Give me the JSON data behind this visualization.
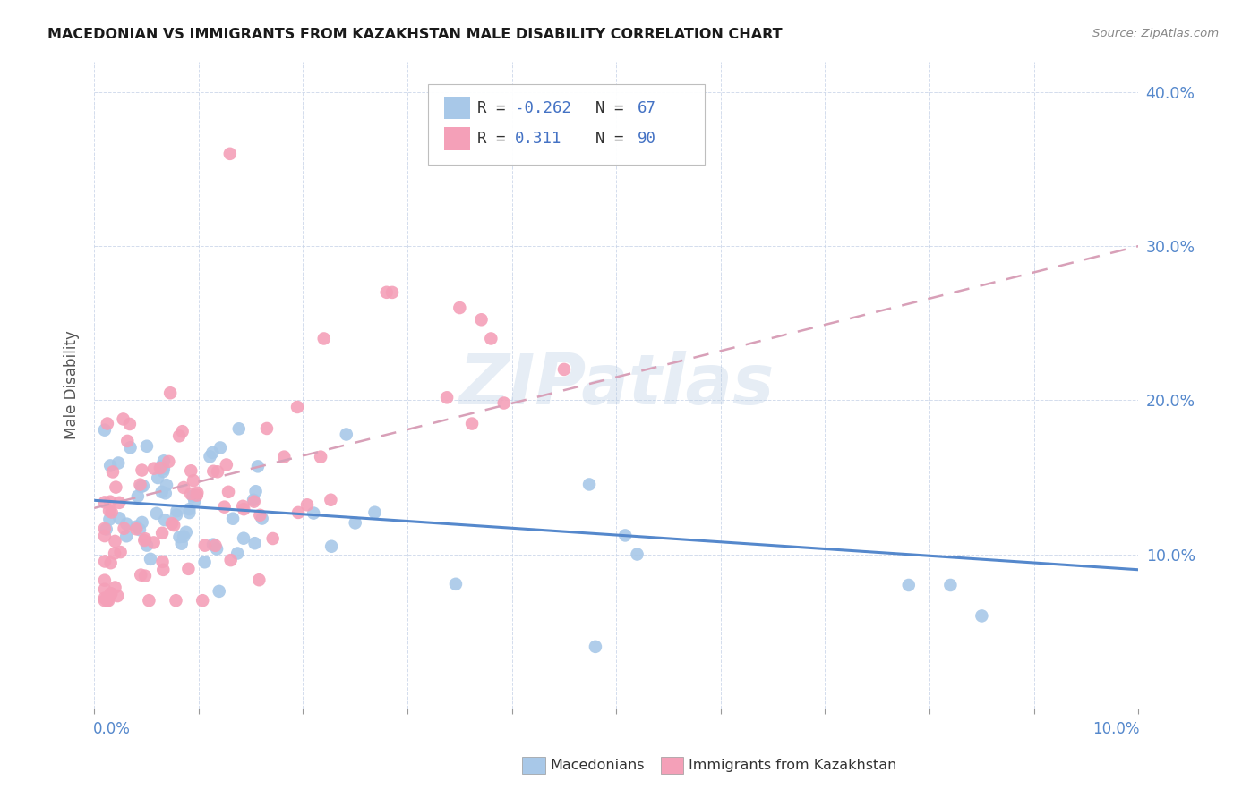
{
  "title": "MACEDONIAN VS IMMIGRANTS FROM KAZAKHSTAN MALE DISABILITY CORRELATION CHART",
  "source": "Source: ZipAtlas.com",
  "ylabel": "Male Disability",
  "xlim": [
    0.0,
    0.1
  ],
  "ylim": [
    0.0,
    0.42
  ],
  "y_ticks": [
    0.0,
    0.1,
    0.2,
    0.3,
    0.4
  ],
  "y_tick_labels": [
    "",
    "10.0%",
    "20.0%",
    "30.0%",
    "40.0%"
  ],
  "blue_scatter_color": "#a8c8e8",
  "pink_scatter_color": "#f4a0b8",
  "blue_line_color": "#5588cc",
  "pink_line_color": "#d8a0b8",
  "watermark": "ZIPatlas",
  "legend_r_blue": "-0.262",
  "legend_n_blue": "67",
  "legend_r_pink": "0.311",
  "legend_n_pink": "90",
  "mac_seed": 123,
  "kaz_seed": 456
}
